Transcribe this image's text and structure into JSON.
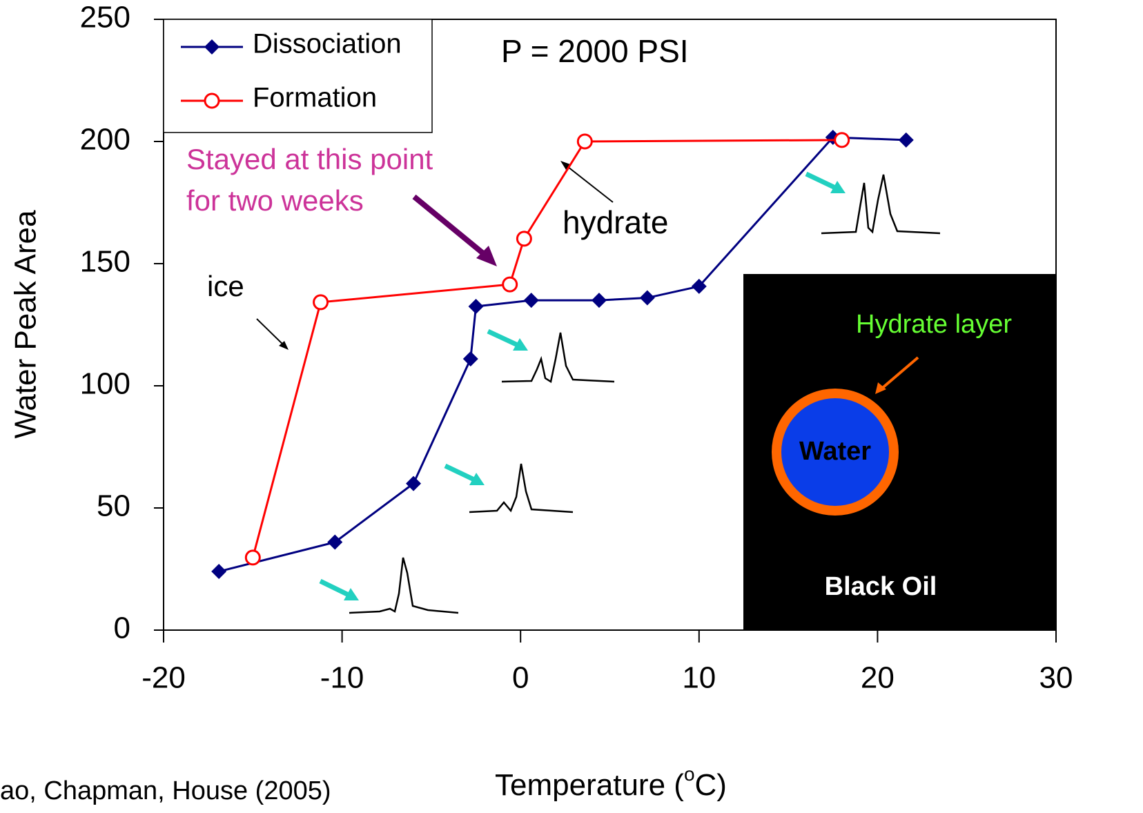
{
  "chart_data": {
    "type": "line",
    "title": "P = 2000 PSI",
    "y_label": "Water Peak Area",
    "x_label": [
      "Temperature (",
      "o",
      "C)"
    ],
    "xlim": [
      -20,
      30
    ],
    "xticks": [
      -20,
      -10,
      0,
      10,
      20,
      30
    ],
    "ylim": [
      0,
      250
    ],
    "yticks": [
      0,
      50,
      100,
      150,
      200,
      250
    ],
    "legend": "top-left",
    "series": [
      {
        "name": "Dissociation",
        "color": "#000080",
        "marker": "diamond",
        "x": [
          -16.9,
          -10.4,
          -6.0,
          -2.8,
          -2.5,
          0.6,
          4.4,
          7.1,
          10.0,
          17.5,
          21.6
        ],
        "values": [
          24,
          36,
          60,
          111,
          132.5,
          135,
          135,
          136,
          140.7,
          201.7,
          200.6
        ]
      },
      {
        "name": "Formation",
        "color": "#ff0000",
        "marker": "circle",
        "x": [
          -15.0,
          -11.2,
          -0.6,
          0.2,
          3.6,
          18.0
        ],
        "values": [
          29.7,
          134.2,
          141.5,
          160.2,
          200,
          200.6
        ]
      }
    ],
    "annotations": {
      "stayed": [
        "Stayed at this point",
        "for two weeks"
      ],
      "ice": "ice",
      "hydrate": "hydrate",
      "hydrate_layer": "Hydrate layer",
      "water": "Water",
      "black_oil": "Black Oil"
    },
    "citation": "ao, Chapman, House (2005)"
  }
}
